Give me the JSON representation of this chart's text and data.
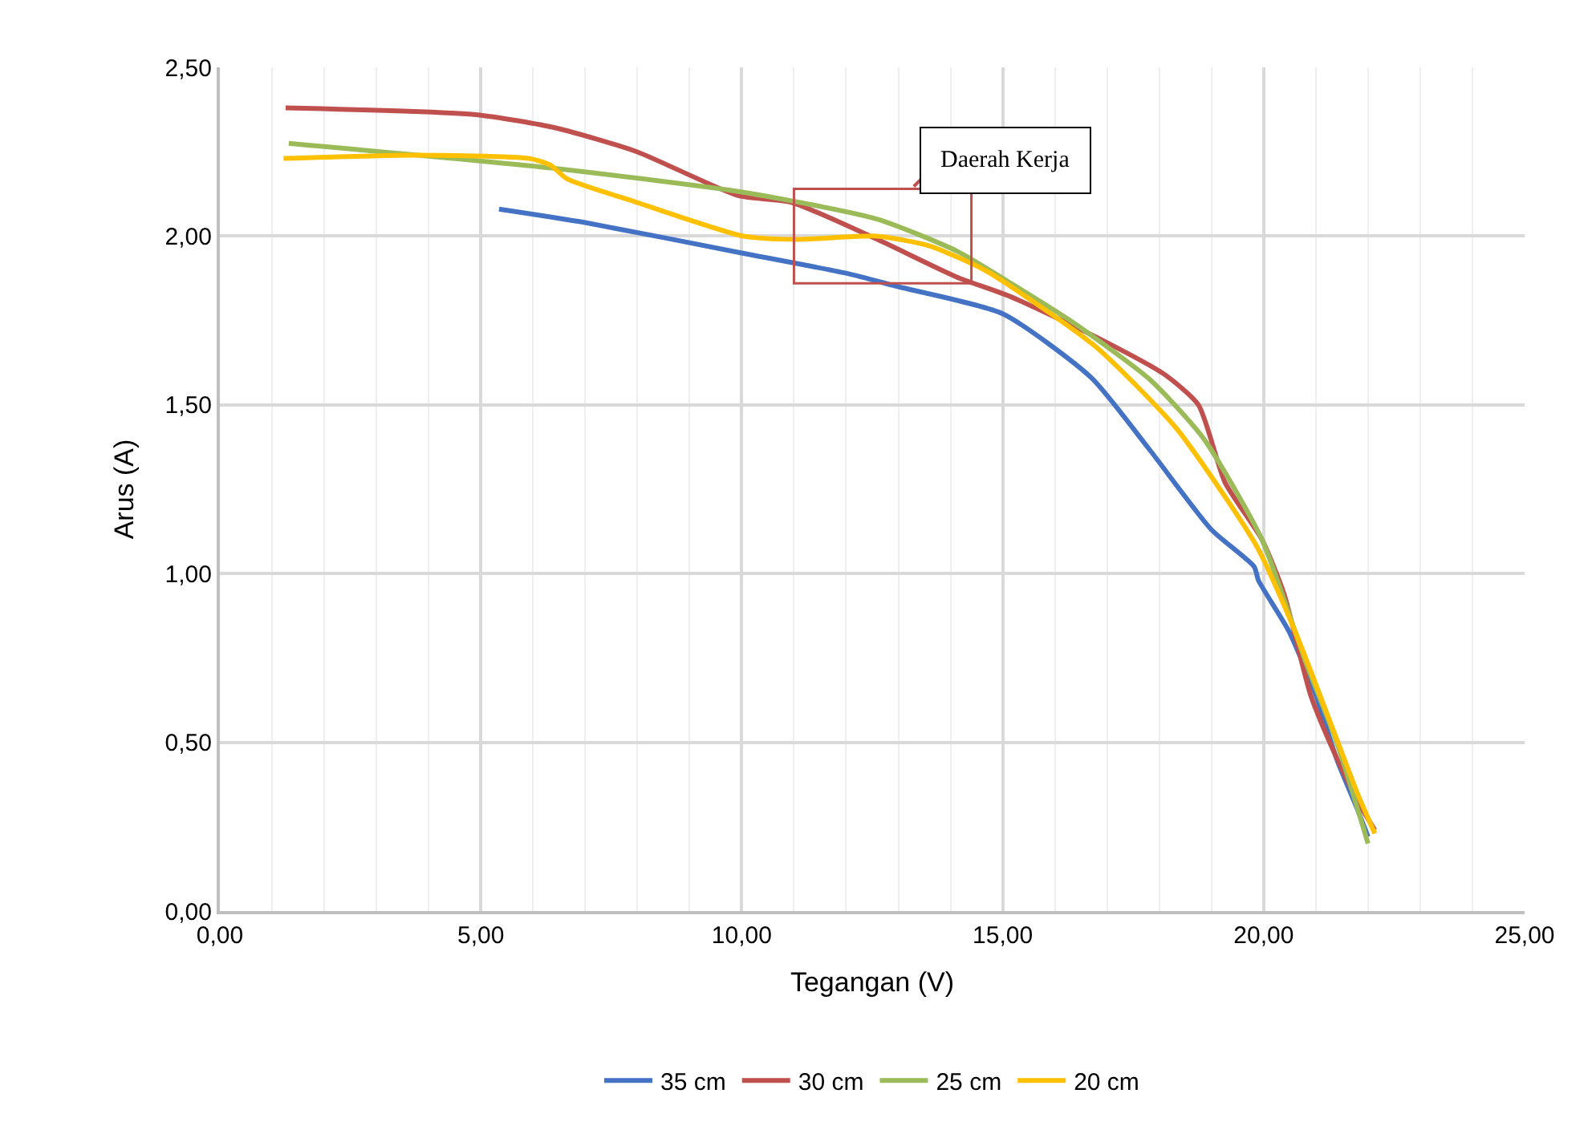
{
  "chart_data": {
    "type": "line",
    "xlabel": "Tegangan (V)",
    "ylabel": "Arus (A)",
    "xlim": [
      0,
      25
    ],
    "xticks": [
      {
        "value": 0,
        "label": "0,00"
      },
      {
        "value": 5,
        "label": "5,00"
      },
      {
        "value": 10,
        "label": "10,00"
      },
      {
        "value": 15,
        "label": "15,00"
      },
      {
        "value": 20,
        "label": "20,00"
      },
      {
        "value": 25,
        "label": "25,00"
      }
    ],
    "ylim": [
      0,
      2.5
    ],
    "yticks": [
      {
        "value": 0,
        "label": "0,00"
      },
      {
        "value": 0.5,
        "label": "0,50"
      },
      {
        "value": 1,
        "label": "1,00"
      },
      {
        "value": 1.5,
        "label": "1,50"
      },
      {
        "value": 2,
        "label": "2,00"
      },
      {
        "value": 2.5,
        "label": "2,50"
      }
    ],
    "grid": true,
    "legend": "bottom",
    "marker": "none",
    "line_style": "solid",
    "annotations": [
      "Daerah Kerja"
    ],
    "series": [
      {
        "name": "35 cm",
        "color": "#4472c4",
        "x": [
          5.35,
          7.0,
          10.0,
          12.0,
          13.0,
          15.0,
          16.7,
          17.8,
          19.0,
          19.82,
          19.9,
          20.48,
          21.0,
          21.4,
          21.8,
          22.0
        ],
        "values": [
          2.08,
          2.04,
          1.95,
          1.89,
          1.85,
          1.77,
          1.58,
          1.37,
          1.13,
          1.02,
          0.98,
          0.83,
          0.64,
          0.45,
          0.3,
          0.22
        ]
      },
      {
        "name": "30 cm",
        "color": "#c0504d",
        "x": [
          1.26,
          4.91,
          6.45,
          7.99,
          9.93,
          10.95,
          12.6,
          14.1,
          15.16,
          16.8,
          18.1,
          18.75,
          19.26,
          19.97,
          20.39,
          20.9,
          21.41,
          21.82,
          22.13
        ],
        "values": [
          2.38,
          2.36,
          2.32,
          2.25,
          2.12,
          2.1,
          1.99,
          1.88,
          1.82,
          1.7,
          1.59,
          1.5,
          1.27,
          1.1,
          0.94,
          0.64,
          0.45,
          0.32,
          0.24
        ]
      },
      {
        "name": "25 cm",
        "color": "#9bbb59",
        "x": [
          1.32,
          6.45,
          10.03,
          12.6,
          14.13,
          15.16,
          16.29,
          17.82,
          18.85,
          19.97,
          20.8,
          21.4,
          22.0
        ],
        "values": [
          2.275,
          2.2,
          2.13,
          2.05,
          1.955,
          1.86,
          1.75,
          1.575,
          1.4,
          1.1,
          0.74,
          0.5,
          0.2
        ]
      },
      {
        "name": "20 cm",
        "color": "#ffc000",
        "x": [
          1.22,
          3.68,
          5.93,
          6.34,
          6.65,
          7.99,
          10.03,
          11.06,
          12.6,
          13.62,
          14.65,
          15.26,
          16.8,
          18.33,
          19.87,
          20.6,
          21.3,
          21.82,
          22.13
        ],
        "values": [
          2.23,
          2.24,
          2.23,
          2.21,
          2.17,
          2.1,
          2.0,
          1.99,
          2.0,
          1.97,
          1.9,
          1.84,
          1.67,
          1.43,
          1.08,
          0.83,
          0.55,
          0.34,
          0.23
        ]
      }
    ]
  }
}
